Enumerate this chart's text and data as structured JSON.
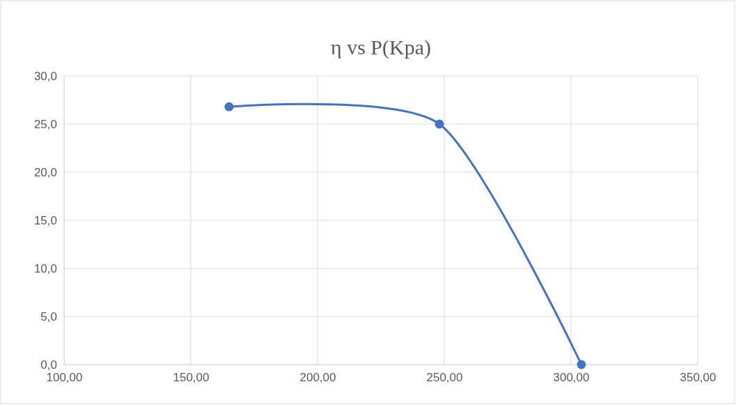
{
  "chart_data": {
    "type": "line",
    "title": "η vs P(Kpa)",
    "x": [
      165.1,
      248.1,
      304.1
    ],
    "series": [
      {
        "color": "#4472c4",
        "values": [
          26.8,
          25.0,
          0.0
        ]
      }
    ],
    "xlim": [
      100,
      350
    ],
    "xticks": [
      {
        "value": 100,
        "label": "100,00"
      },
      {
        "value": 150,
        "label": "150,00"
      },
      {
        "value": 200,
        "label": "200,00"
      },
      {
        "value": 250,
        "label": "250,00"
      },
      {
        "value": 300,
        "label": "300,00"
      },
      {
        "value": 350,
        "label": "350,00"
      }
    ],
    "ylim": [
      0,
      30
    ],
    "yticks": [
      {
        "value": 0,
        "label": "0,0"
      },
      {
        "value": 5,
        "label": "5,0"
      },
      {
        "value": 10,
        "label": "10,0"
      },
      {
        "value": 15,
        "label": "15,0"
      },
      {
        "value": 20,
        "label": "20,0"
      },
      {
        "value": 25,
        "label": "25,0"
      },
      {
        "value": 30,
        "label": "30,0"
      }
    ],
    "grid": true,
    "marker": "circle",
    "line_style": "solid"
  }
}
